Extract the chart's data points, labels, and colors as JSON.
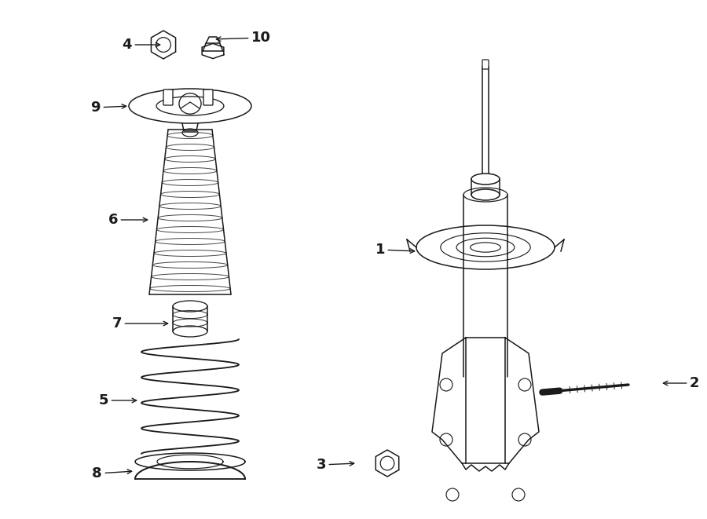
{
  "bg_color": "#ffffff",
  "line_color": "#1a1a1a",
  "line_width": 1.1,
  "label_fontsize": 13,
  "fig_width": 9.0,
  "fig_height": 6.61,
  "dpi": 100
}
